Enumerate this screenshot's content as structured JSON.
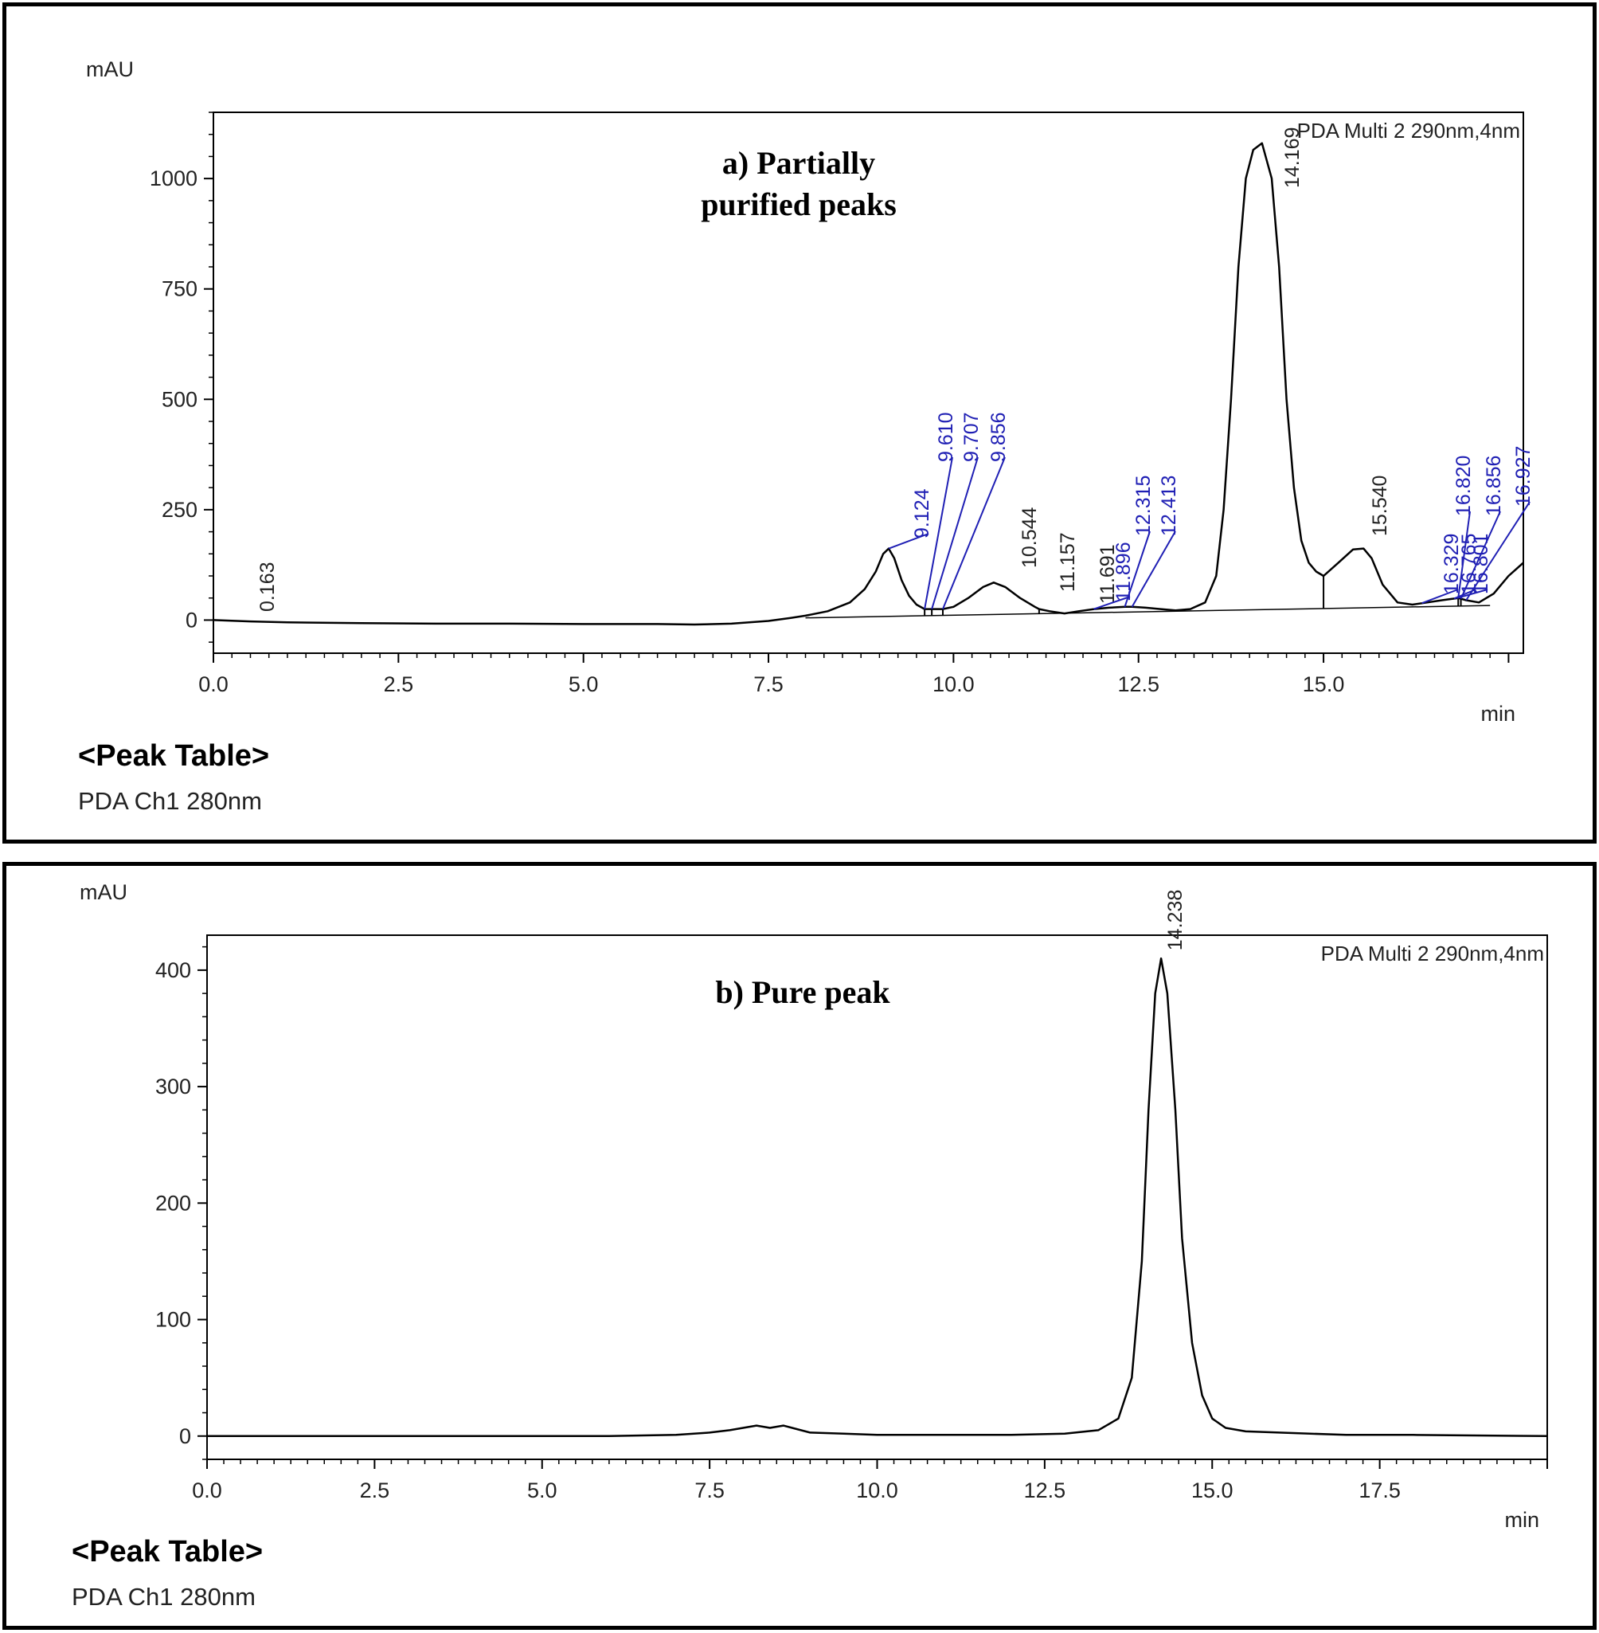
{
  "chart_data": [
    {
      "type": "line",
      "title": "a) Partially purified peaks",
      "title_lines": [
        "a) Partially",
        "purified peaks"
      ],
      "ylabel": "mAU",
      "xlabel": "min",
      "channel_label": "PDA Multi 2 290nm,4nm",
      "xlim": [
        0,
        17.7
      ],
      "ylim": [
        -75,
        1150
      ],
      "x_ticks": [
        "0.0",
        "2.5",
        "5.0",
        "7.5",
        "10.0",
        "12.5",
        "15.0"
      ],
      "x_tick_values": [
        0,
        2.5,
        5.0,
        7.5,
        10.0,
        12.5,
        15.0
      ],
      "y_ticks": [
        "0",
        "250",
        "500",
        "750",
        "1000"
      ],
      "y_tick_values": [
        0,
        250,
        500,
        750,
        1000
      ],
      "grid": false,
      "series": [
        {
          "x": [
            0,
            0.5,
            1,
            2,
            3,
            4,
            5,
            6,
            6.5,
            7,
            7.5,
            7.8,
            8.0,
            8.3,
            8.6,
            8.8,
            8.95,
            9.05,
            9.124,
            9.2,
            9.3,
            9.4,
            9.5,
            9.61,
            9.707,
            9.856,
            10.0,
            10.2,
            10.4,
            10.544,
            10.7,
            10.9,
            11.1,
            11.157,
            11.3,
            11.5,
            11.691,
            11.9,
            12.1,
            12.315,
            12.413,
            12.6,
            12.8,
            13.0,
            13.2,
            13.4,
            13.55,
            13.65,
            13.75,
            13.85,
            13.95,
            14.05,
            14.169,
            14.3,
            14.4,
            14.5,
            14.6,
            14.7,
            14.8,
            14.9,
            15.0,
            15.2,
            15.4,
            15.54,
            15.65,
            15.8,
            16.0,
            16.2,
            16.4,
            16.6,
            16.82,
            16.927,
            17.1,
            17.3,
            17.5,
            17.7
          ],
          "values": [
            0,
            -3,
            -5,
            -7,
            -8,
            -8,
            -9,
            -9,
            -10,
            -8,
            -2,
            5,
            10,
            20,
            40,
            70,
            110,
            150,
            162,
            140,
            90,
            55,
            35,
            25,
            25,
            25,
            30,
            50,
            75,
            85,
            75,
            50,
            30,
            25,
            20,
            15,
            20,
            25,
            28,
            30,
            30,
            28,
            25,
            22,
            25,
            40,
            100,
            250,
            500,
            800,
            1000,
            1065,
            1080,
            1000,
            800,
            500,
            300,
            180,
            130,
            110,
            100,
            130,
            160,
            162,
            140,
            80,
            40,
            35,
            40,
            45,
            50,
            45,
            40,
            60,
            100,
            130
          ]
        }
      ],
      "peak_labels": [
        "0.163",
        "9.124",
        "9.610",
        "9.707",
        "9.856",
        "10.544",
        "11.157",
        "11.691",
        "11.896",
        "12.315",
        "12.413",
        "14.169",
        "15.540",
        "16.329",
        "16.765",
        "16.801",
        "16.820",
        "16.856",
        "16.927"
      ],
      "peak_times": [
        0.163,
        9.124,
        9.61,
        9.707,
        9.856,
        10.544,
        11.157,
        11.691,
        11.896,
        12.315,
        12.413,
        14.169,
        15.54,
        16.329,
        16.765,
        16.801,
        16.82,
        16.856,
        16.927
      ]
    },
    {
      "type": "line",
      "title": "b) Pure peak",
      "title_lines": [
        "b) Pure peak"
      ],
      "ylabel": "mAU",
      "xlabel": "min",
      "channel_label": "PDA Multi 2 290nm,4nm",
      "xlim": [
        0,
        20
      ],
      "ylim": [
        -20,
        430
      ],
      "x_ticks": [
        "0.0",
        "2.5",
        "5.0",
        "7.5",
        "10.0",
        "12.5",
        "15.0",
        "17.5"
      ],
      "x_tick_values": [
        0,
        2.5,
        5.0,
        7.5,
        10.0,
        12.5,
        15.0,
        17.5
      ],
      "y_ticks": [
        "0",
        "100",
        "200",
        "300",
        "400"
      ],
      "y_tick_values": [
        0,
        100,
        200,
        300,
        400
      ],
      "grid": false,
      "series": [
        {
          "x": [
            0,
            2,
            4,
            6,
            7,
            7.5,
            7.8,
            8.0,
            8.2,
            8.4,
            8.6,
            8.8,
            9.0,
            9.5,
            10,
            11,
            12,
            12.8,
            13.3,
            13.6,
            13.8,
            13.95,
            14.05,
            14.15,
            14.238,
            14.33,
            14.45,
            14.55,
            14.7,
            14.85,
            15.0,
            15.2,
            15.5,
            16,
            17,
            18,
            20
          ],
          "values": [
            0,
            0,
            0,
            0,
            1,
            3,
            5,
            7,
            9,
            7,
            9,
            6,
            3,
            2,
            1,
            1,
            1,
            2,
            5,
            15,
            50,
            150,
            280,
            380,
            410,
            380,
            280,
            170,
            80,
            35,
            15,
            7,
            4,
            3,
            1,
            1,
            0
          ]
        }
      ],
      "peak_labels": [
        "14.238"
      ],
      "peak_times": [
        14.238
      ]
    }
  ],
  "footer_a": {
    "peak_table": "<Peak Table>",
    "channel": "PDA Ch1 280nm"
  },
  "footer_b": {
    "peak_table": "<Peak Table>",
    "channel": "PDA Ch1 280nm"
  },
  "colors": {
    "trace": "#000000",
    "peak_marker_blue": "#1f1fb4",
    "axis": "#000000"
  }
}
